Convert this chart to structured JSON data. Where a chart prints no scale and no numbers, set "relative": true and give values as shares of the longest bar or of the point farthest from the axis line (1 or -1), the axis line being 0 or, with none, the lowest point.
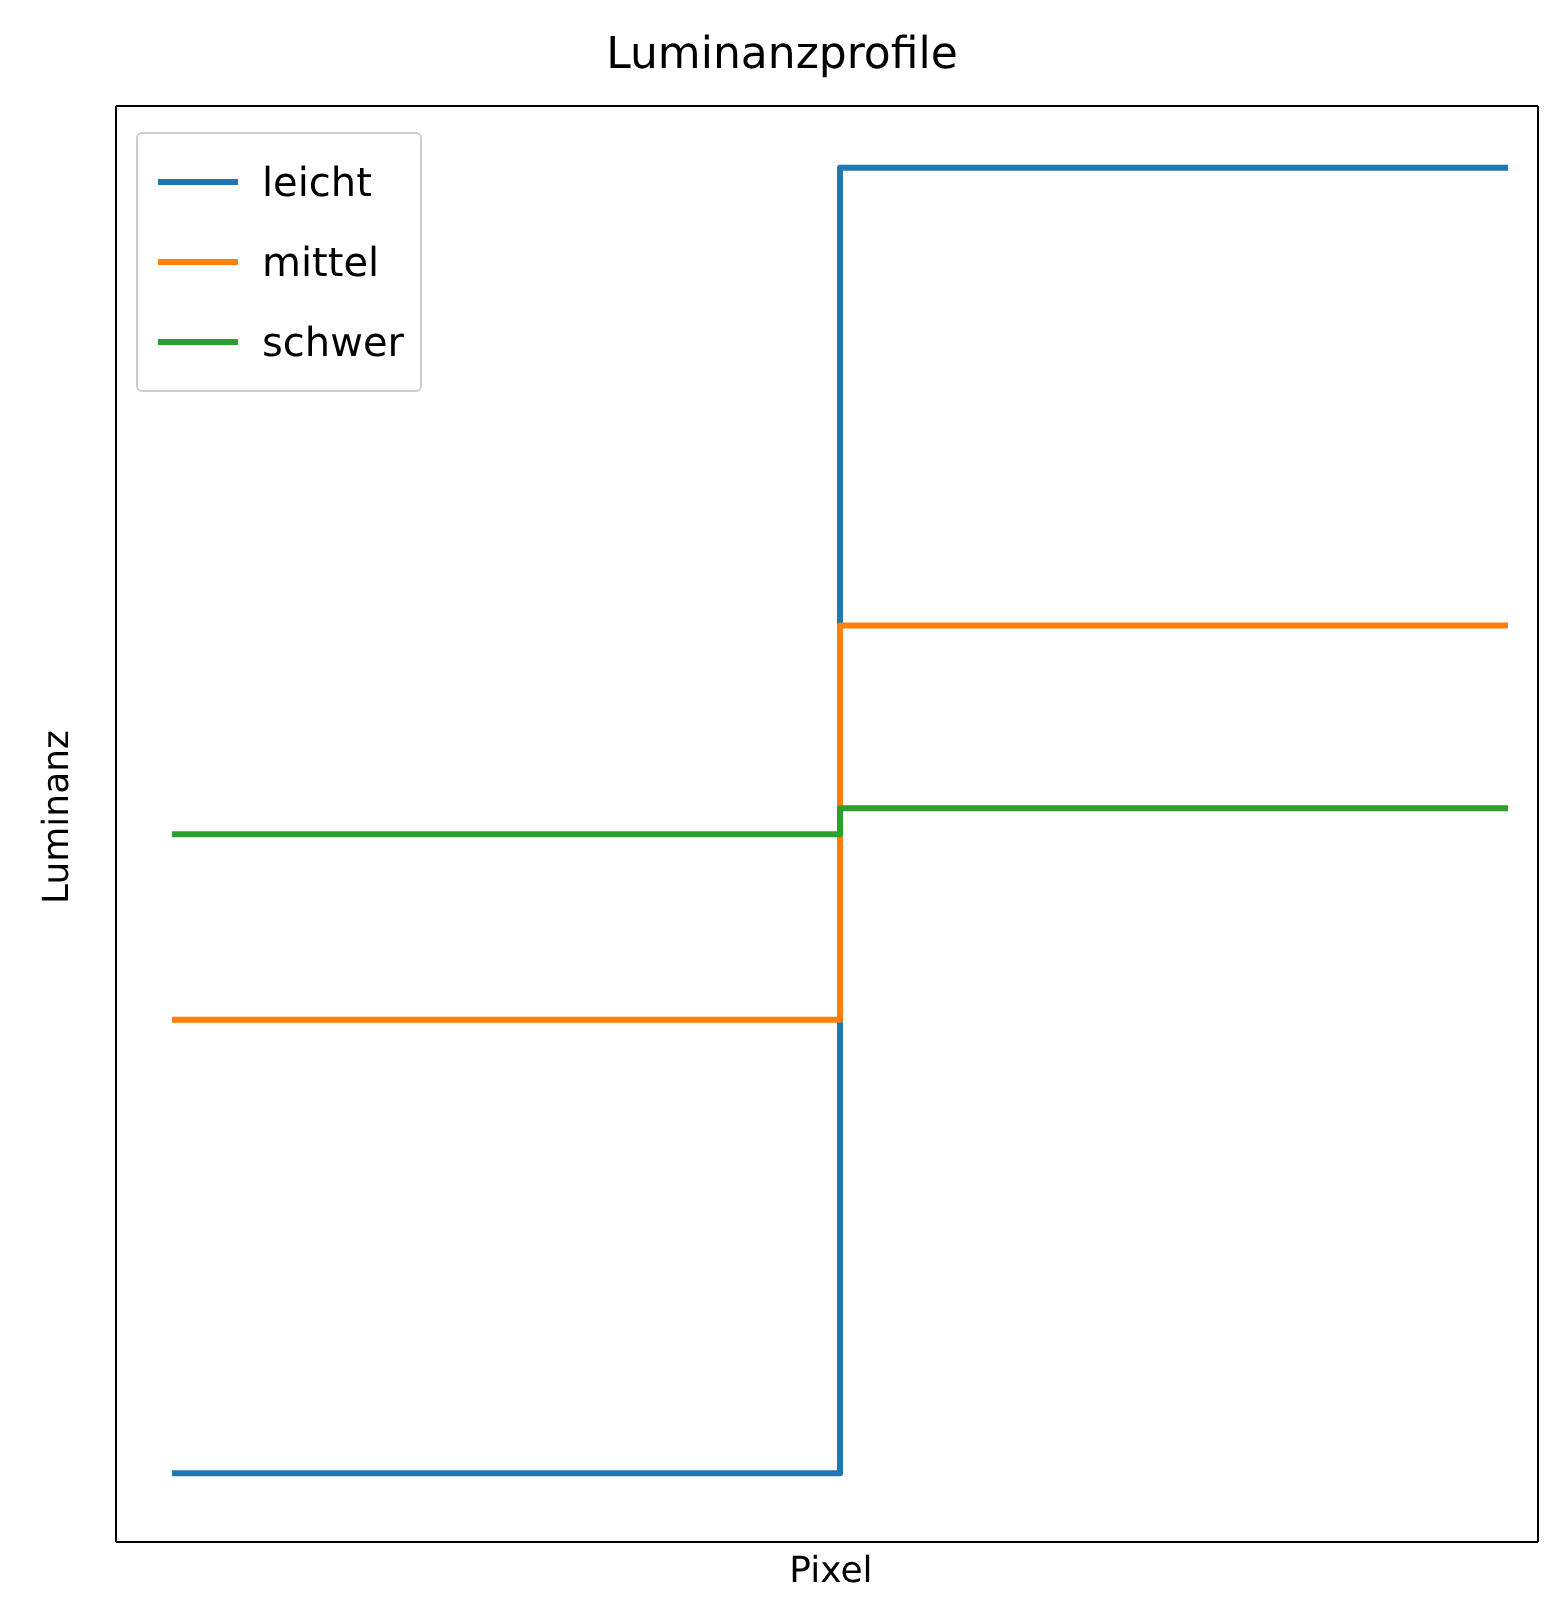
{
  "chart_data": {
    "type": "step",
    "title": "Luminanzprofile",
    "xlabel": "Pixel",
    "ylabel": "Luminanz",
    "relative": true,
    "categories": [
      null,
      null,
      null
    ],
    "legend": "top left",
    "series": [
      {
        "name": "leicht",
        "color": "#1f77b4",
        "values": [
          0.05,
          1,
          1
        ]
      },
      {
        "name": "mittel",
        "color": "#ff7f0e",
        "values": [
          0.38,
          0.667,
          0.667
        ]
      },
      {
        "name": "schwer",
        "color": "#2ca02c",
        "values": [
          0.515,
          0.534,
          0.534
        ]
      }
    ]
  }
}
